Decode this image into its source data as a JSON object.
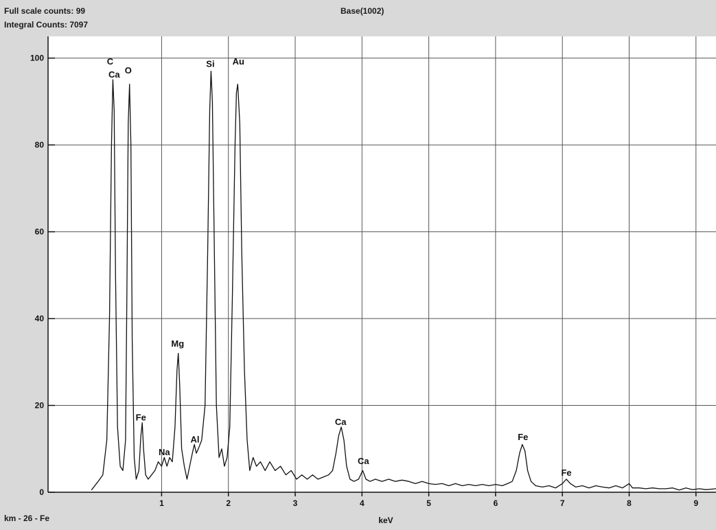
{
  "header": {
    "full_scale": "Full scale counts: 99",
    "integral": "Integral Counts: 7097",
    "title": "Base(1002)"
  },
  "footer": {
    "sample": "km - 26 - Fe"
  },
  "colors": {
    "background": "#d9d9d9",
    "plot_area": "#ffffff",
    "grid": "#555555",
    "trace": "#111111"
  },
  "chart_data": {
    "type": "line",
    "title": "Base(1002)",
    "xlabel": "keV",
    "ylabel": "",
    "xlim": [
      -0.7,
      9.3
    ],
    "ylim": [
      0,
      105
    ],
    "x_ticks": [
      1,
      2,
      3,
      4,
      5,
      6,
      7,
      8,
      9
    ],
    "y_ticks": [
      0,
      20,
      40,
      60,
      80,
      100
    ],
    "grid": true,
    "legend": "none",
    "peaks": [
      {
        "element": "C",
        "energy": 0.28,
        "counts": 95
      },
      {
        "element": "O",
        "energy": 0.52,
        "counts": 94
      },
      {
        "element": "Fe",
        "energy": 0.71,
        "counts": 16
      },
      {
        "element": "Na",
        "energy": 1.04,
        "counts": 8
      },
      {
        "element": "Mg",
        "energy": 1.25,
        "counts": 32
      },
      {
        "element": "Al",
        "energy": 1.49,
        "counts": 11
      },
      {
        "element": "Si",
        "energy": 1.74,
        "counts": 97
      },
      {
        "element": "Au",
        "energy": 2.12,
        "counts": 94
      },
      {
        "element": "Ca",
        "energy": 3.69,
        "counts": 15
      },
      {
        "element": "Ca",
        "energy": 4.01,
        "counts": 5
      },
      {
        "element": "Fe",
        "energy": 6.4,
        "counts": 11
      },
      {
        "element": "Fe",
        "energy": 7.06,
        "counts": 3
      }
    ],
    "labels": [
      {
        "text": "C",
        "energy": 0.23,
        "counts": 98.5
      },
      {
        "text": "Ca",
        "energy": 0.29,
        "counts": 95.5
      },
      {
        "text": "O",
        "energy": 0.5,
        "counts": 96.5
      },
      {
        "text": "Fe",
        "energy": 0.69,
        "counts": 16.5
      },
      {
        "text": "Na",
        "energy": 1.04,
        "counts": 8.5
      },
      {
        "text": "Mg",
        "energy": 1.24,
        "counts": 33.5
      },
      {
        "text": "Al",
        "energy": 1.5,
        "counts": 11.5
      },
      {
        "text": "Si",
        "energy": 1.73,
        "counts": 98.0
      },
      {
        "text": "Au",
        "energy": 2.15,
        "counts": 98.5
      },
      {
        "text": "Ca",
        "energy": 3.68,
        "counts": 15.5
      },
      {
        "text": "Ca",
        "energy": 4.02,
        "counts": 6.5
      },
      {
        "text": "Fe",
        "energy": 6.41,
        "counts": 12.0
      },
      {
        "text": "Fe",
        "energy": 7.06,
        "counts": 3.8
      }
    ],
    "spectrum": [
      [
        -0.05,
        0.5
      ],
      [
        0.05,
        2.5
      ],
      [
        0.12,
        4
      ],
      [
        0.18,
        12
      ],
      [
        0.22,
        40
      ],
      [
        0.25,
        80
      ],
      [
        0.27,
        95
      ],
      [
        0.29,
        88
      ],
      [
        0.31,
        50
      ],
      [
        0.34,
        15
      ],
      [
        0.38,
        6
      ],
      [
        0.42,
        5
      ],
      [
        0.46,
        12
      ],
      [
        0.48,
        45
      ],
      [
        0.5,
        85
      ],
      [
        0.52,
        94
      ],
      [
        0.54,
        80
      ],
      [
        0.56,
        35
      ],
      [
        0.59,
        8
      ],
      [
        0.62,
        3
      ],
      [
        0.66,
        5
      ],
      [
        0.69,
        13
      ],
      [
        0.71,
        16
      ],
      [
        0.73,
        10
      ],
      [
        0.76,
        4
      ],
      [
        0.8,
        3
      ],
      [
        0.85,
        4
      ],
      [
        0.9,
        5
      ],
      [
        0.95,
        7
      ],
      [
        1.0,
        6
      ],
      [
        1.04,
        8
      ],
      [
        1.08,
        6
      ],
      [
        1.12,
        8
      ],
      [
        1.16,
        7
      ],
      [
        1.2,
        15
      ],
      [
        1.23,
        28
      ],
      [
        1.25,
        32
      ],
      [
        1.27,
        25
      ],
      [
        1.3,
        10
      ],
      [
        1.34,
        6
      ],
      [
        1.38,
        3
      ],
      [
        1.42,
        6
      ],
      [
        1.46,
        9
      ],
      [
        1.49,
        11
      ],
      [
        1.52,
        9
      ],
      [
        1.55,
        10
      ],
      [
        1.6,
        12
      ],
      [
        1.65,
        20
      ],
      [
        1.69,
        55
      ],
      [
        1.72,
        88
      ],
      [
        1.74,
        97
      ],
      [
        1.76,
        90
      ],
      [
        1.79,
        55
      ],
      [
        1.82,
        20
      ],
      [
        1.86,
        8
      ],
      [
        1.9,
        10
      ],
      [
        1.94,
        6
      ],
      [
        1.98,
        8
      ],
      [
        2.02,
        15
      ],
      [
        2.06,
        45
      ],
      [
        2.1,
        80
      ],
      [
        2.12,
        92
      ],
      [
        2.14,
        94
      ],
      [
        2.17,
        85
      ],
      [
        2.2,
        55
      ],
      [
        2.24,
        28
      ],
      [
        2.28,
        12
      ],
      [
        2.32,
        5
      ],
      [
        2.37,
        8
      ],
      [
        2.42,
        6
      ],
      [
        2.48,
        7
      ],
      [
        2.55,
        5
      ],
      [
        2.62,
        7
      ],
      [
        2.7,
        5
      ],
      [
        2.78,
        6
      ],
      [
        2.86,
        4
      ],
      [
        2.94,
        5
      ],
      [
        3.02,
        3
      ],
      [
        3.1,
        4
      ],
      [
        3.18,
        3
      ],
      [
        3.26,
        4
      ],
      [
        3.34,
        3
      ],
      [
        3.42,
        3.5
      ],
      [
        3.5,
        4
      ],
      [
        3.56,
        5
      ],
      [
        3.61,
        9
      ],
      [
        3.65,
        13
      ],
      [
        3.69,
        15
      ],
      [
        3.73,
        12
      ],
      [
        3.77,
        6
      ],
      [
        3.82,
        3
      ],
      [
        3.88,
        2.5
      ],
      [
        3.95,
        3
      ],
      [
        4.01,
        5
      ],
      [
        4.06,
        3
      ],
      [
        4.12,
        2.5
      ],
      [
        4.2,
        3
      ],
      [
        4.3,
        2.5
      ],
      [
        4.4,
        3
      ],
      [
        4.5,
        2.5
      ],
      [
        4.6,
        2.8
      ],
      [
        4.7,
        2.5
      ],
      [
        4.8,
        2
      ],
      [
        4.9,
        2.5
      ],
      [
        5.0,
        2
      ],
      [
        5.1,
        1.8
      ],
      [
        5.2,
        2
      ],
      [
        5.3,
        1.5
      ],
      [
        5.4,
        2
      ],
      [
        5.5,
        1.5
      ],
      [
        5.6,
        1.8
      ],
      [
        5.7,
        1.5
      ],
      [
        5.8,
        1.8
      ],
      [
        5.9,
        1.5
      ],
      [
        6.0,
        1.8
      ],
      [
        6.1,
        1.5
      ],
      [
        6.18,
        2
      ],
      [
        6.25,
        2.5
      ],
      [
        6.31,
        5
      ],
      [
        6.36,
        9
      ],
      [
        6.4,
        11
      ],
      [
        6.44,
        9.5
      ],
      [
        6.48,
        5
      ],
      [
        6.53,
        2.5
      ],
      [
        6.6,
        1.5
      ],
      [
        6.7,
        1.2
      ],
      [
        6.8,
        1.5
      ],
      [
        6.9,
        1
      ],
      [
        7.0,
        2
      ],
      [
        7.06,
        3
      ],
      [
        7.12,
        2
      ],
      [
        7.2,
        1.2
      ],
      [
        7.3,
        1.5
      ],
      [
        7.4,
        1
      ],
      [
        7.5,
        1.5
      ],
      [
        7.6,
        1.2
      ],
      [
        7.7,
        1
      ],
      [
        7.8,
        1.5
      ],
      [
        7.9,
        1
      ],
      [
        8.0,
        2
      ],
      [
        8.05,
        1
      ],
      [
        8.15,
        1
      ],
      [
        8.25,
        0.8
      ],
      [
        8.35,
        1
      ],
      [
        8.45,
        0.8
      ],
      [
        8.55,
        0.8
      ],
      [
        8.65,
        1
      ],
      [
        8.75,
        0.5
      ],
      [
        8.85,
        1
      ],
      [
        8.95,
        0.6
      ],
      [
        9.05,
        0.8
      ],
      [
        9.15,
        0.6
      ],
      [
        9.3,
        0.8
      ]
    ]
  }
}
